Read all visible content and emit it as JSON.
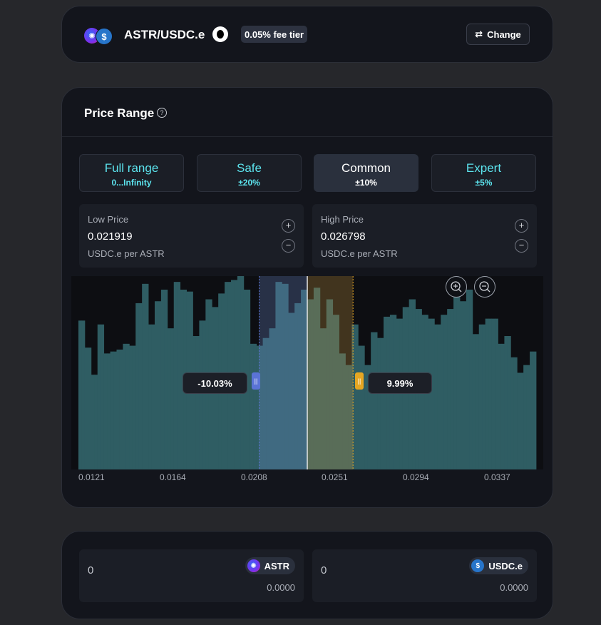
{
  "pair": {
    "name": "ASTR/USDC.e",
    "fee_tier": "0.05% fee tier",
    "change_label": "Change",
    "token0_icon": "astar-logo",
    "token1_icon": "usdc-logo"
  },
  "range": {
    "title": "Price Range",
    "presets": [
      {
        "label": "Full range",
        "sub": "0...Infinity",
        "active": false
      },
      {
        "label": "Safe",
        "sub": "±20%",
        "active": false
      },
      {
        "label": "Common",
        "sub": "±10%",
        "active": true
      },
      {
        "label": "Expert",
        "sub": "±5%",
        "active": false
      }
    ],
    "low": {
      "title": "Low Price",
      "value": "0.021919",
      "unit": "USDC.e per ASTR"
    },
    "high": {
      "title": "High Price",
      "value": "0.026798",
      "unit": "USDC.e per ASTR"
    },
    "low_pct": "-10.03%",
    "high_pct": "9.99%"
  },
  "chart_data": {
    "type": "bar",
    "x_ticks": [
      "0.0121",
      "0.0164",
      "0.0208",
      "0.0251",
      "0.0294",
      "0.0337"
    ],
    "current_price_fraction": 0.5,
    "range_low_fraction": 0.395,
    "range_high_fraction": 0.6,
    "bars": [
      0.77,
      0.77,
      0.63,
      0.63,
      0.49,
      0.49,
      0.75,
      0.75,
      0.6,
      0.6,
      0.61,
      0.61,
      0.62,
      0.62,
      0.65,
      0.65,
      0.64,
      0.64,
      0.86,
      0.86,
      0.96,
      0.96,
      0.75,
      0.75,
      0.87,
      0.87,
      0.93,
      0.93,
      0.73,
      0.73,
      0.97,
      0.97,
      0.93,
      0.93,
      0.92,
      0.92,
      0.69,
      0.69,
      0.77,
      0.77,
      0.88,
      0.88,
      0.84,
      0.84,
      0.91,
      0.91,
      0.97,
      0.97,
      0.98,
      0.98,
      1.0,
      1.0,
      0.93,
      0.93,
      0.65,
      0.65,
      0.64,
      0.64,
      0.68,
      0.68,
      0.73,
      0.73,
      0.97,
      0.97,
      0.96,
      0.96,
      0.81,
      0.81,
      0.86,
      0.86,
      0.93,
      0.93,
      0.88,
      0.88,
      0.94,
      0.94,
      0.73,
      0.73,
      0.88,
      0.88,
      0.8,
      0.8,
      0.6,
      0.6,
      0.54,
      0.54,
      0.75,
      0.75,
      0.64,
      0.64,
      0.54,
      0.54,
      0.71,
      0.71,
      0.68,
      0.68,
      0.79,
      0.79,
      0.8,
      0.8,
      0.78,
      0.78,
      0.84,
      0.84,
      0.88,
      0.88,
      0.83,
      0.83,
      0.8,
      0.8,
      0.78,
      0.78,
      0.75,
      0.75,
      0.8,
      0.8,
      0.83,
      0.83,
      0.95,
      0.95,
      0.87,
      0.87,
      0.93,
      0.93,
      0.7,
      0.7,
      0.75,
      0.75,
      0.78,
      0.78,
      0.78,
      0.78,
      0.65,
      0.65,
      0.69,
      0.69,
      0.58,
      0.58,
      0.5,
      0.5,
      0.54,
      0.54,
      0.61,
      0.61
    ],
    "colors": {
      "bar": "#2f5d63",
      "range_low_line": "#5a73d6",
      "range_high_line": "#e5a623",
      "current_line": "#e6e6e6"
    }
  },
  "deposit": {
    "token0": {
      "amount": "0",
      "symbol": "ASTR",
      "balance": "0.0000"
    },
    "token1": {
      "amount": "0",
      "symbol": "USDC.e",
      "balance": "0.0000"
    }
  }
}
